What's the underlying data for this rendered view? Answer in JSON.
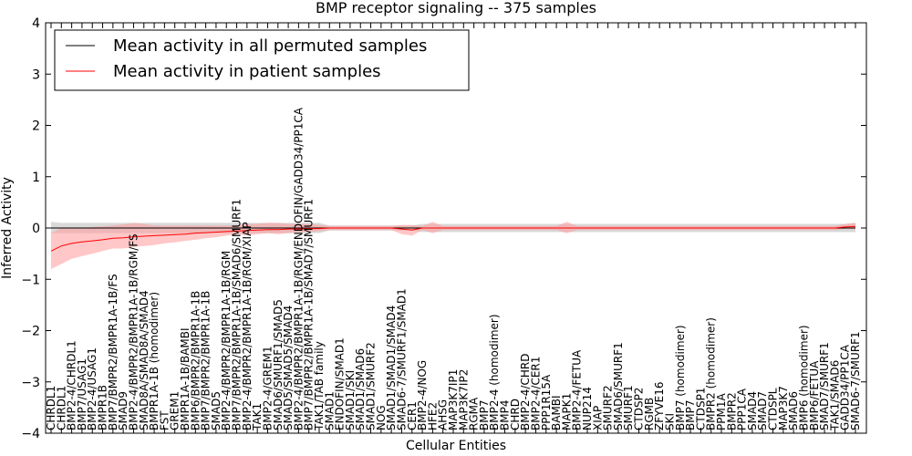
{
  "chart_data": {
    "type": "line",
    "title": "BMP receptor signaling -- 375 samples",
    "xlabel": "Cellular Entities",
    "ylabel": "Inferred Activity",
    "ylim": [
      -4,
      4
    ],
    "yticks": [
      4,
      3,
      2,
      1,
      0,
      -1,
      -2,
      -3,
      -4
    ],
    "ytick_labels": [
      "4",
      "3",
      "2",
      "1",
      "0",
      "−1",
      "−2",
      "−3",
      "−4"
    ],
    "grid": false,
    "legend_position": "top-left",
    "categories": [
      "CHRDL1",
      "CHRDL1",
      "BMP2-4/CHRDL1",
      "BMP7/USAG1",
      "BMP2-4/USAG1",
      "BMPR1B",
      "BMP7/BMPR2/BMPR1A-1B/FS",
      "SMAD9",
      "BMP2-4/BMPR2/BMPR1A-1B/RGM/FS",
      "SMAD8A/SMAD8A/SMAD4",
      "BMPR1A-1B (homodimer)",
      "FST",
      "GREM1",
      "BMPR1A-1B/BAMBI",
      "BMP6/BMPR2/BMPR1A-1B",
      "BMP7/BMPR2/BMPR1A-1B",
      "SMAD5",
      "BMP2-4/BMPR2/BMPR1A-1B/RGM",
      "BMP7/BMPR2/BMPR1A-1B/SMAD6/SMURF1",
      "BMP2-4/BMPR2/BMPR1A-1B/RGM/XIAP",
      "TAK1",
      "BMP2-4/GREM1",
      "SMAD6/SMURF1/SMAD5",
      "SMAD5/SMAD5/SMAD4",
      "BMP2-4/BMPR2/BMPR1A-1B/RGM/ENDOFIN/GADD34/PP1CA",
      "BMP7/BMPR2/BMPR1A-1B/SMAD7/SMURF1",
      "TAK1/TAB family",
      "SMAD1",
      "ENDOFIN/SMAD1",
      "SMAD1/SKI",
      "SMAD1/SMAD6",
      "SMAD1/SMURF2",
      "NOG",
      "SMAD1/SMAD1/SMAD4",
      "SMAD6-7/SMURF1/SMAD1",
      "CER1",
      "BMP2-4/NOG",
      "HFE2",
      "AHSG",
      "MAP3K7IP1",
      "MAP3K7IP2",
      "RGMA",
      "BMP7",
      "BMP2-4 (homodimer)",
      "BMP4",
      "CHRD",
      "BMP2-4/CHRD",
      "BMP2-4/CER1",
      "PPP1R15A",
      "BAMBI",
      "MAPK1",
      "BMP2-4/FETUA",
      "NUP214",
      "XIAP",
      "SMURF2",
      "SMAD6/SMURF1",
      "SMURF1",
      "CTDSP2",
      "RGMB",
      "ZFYVE16",
      "SKI",
      "BMP7 (homodimer)",
      "BMP7",
      "CTDSP1",
      "BMPR2 (homodimer)",
      "PPM1A",
      "BMPR2",
      "PPP1CA",
      "SMAD4",
      "SMAD7",
      "CTDSPL",
      "MAP3K7",
      "SMAD6",
      "BMP6 (homodimer)",
      "BMP6/FETUA",
      "SMAD7/SMURF1",
      "TAK1/SMAD6",
      "GADD34/PP1CA",
      "SMAD6-7/SMURF1"
    ],
    "series": [
      {
        "name": "Mean activity in all permuted samples",
        "color": "#000000",
        "band_color": "#bfbfbf",
        "values": [
          0.0,
          0.0,
          0.0,
          0.0,
          0.0,
          0.0,
          0.0,
          0.0,
          0.0,
          0.0,
          0.0,
          0.0,
          0.0,
          0.0,
          0.0,
          0.0,
          0.0,
          0.0,
          0.0,
          0.0,
          0.0,
          0.0,
          0.0,
          0.0,
          0.0,
          0.0,
          0.0,
          0.0,
          0.0,
          0.0,
          0.0,
          0.0,
          0.0,
          0.0,
          0.0,
          0.0,
          0.0,
          0.0,
          0.0,
          0.0,
          0.0,
          0.0,
          0.0,
          0.0,
          0.0,
          0.0,
          0.0,
          0.0,
          0.0,
          0.0,
          0.0,
          0.0,
          0.0,
          0.0,
          0.0,
          0.0,
          0.0,
          0.0,
          0.0,
          0.0,
          0.0,
          0.0,
          0.0,
          0.0,
          0.0,
          0.0,
          0.0,
          0.0,
          0.0,
          0.0,
          0.0,
          0.0,
          0.0,
          0.0,
          0.0,
          0.0,
          0.0,
          0.0,
          0.0
        ],
        "band_lower": [
          -0.1,
          -0.1,
          -0.1,
          -0.1,
          -0.1,
          -0.1,
          -0.1,
          -0.1,
          -0.1,
          -0.1,
          -0.1,
          -0.1,
          -0.1,
          -0.1,
          -0.1,
          -0.1,
          -0.1,
          -0.1,
          -0.1,
          -0.1,
          -0.1,
          -0.1,
          -0.1,
          -0.1,
          -0.1,
          -0.1,
          -0.1,
          -0.05,
          -0.05,
          -0.05,
          -0.05,
          -0.05,
          -0.05,
          -0.05,
          -0.05,
          -0.05,
          -0.08,
          -0.08,
          -0.08,
          -0.08,
          -0.08,
          -0.08,
          -0.08,
          -0.08,
          -0.08,
          -0.08,
          -0.08,
          -0.08,
          -0.08,
          -0.08,
          -0.08,
          -0.08,
          -0.08,
          -0.08,
          -0.08,
          -0.08,
          -0.08,
          -0.08,
          -0.08,
          -0.08,
          -0.08,
          -0.08,
          -0.08,
          -0.08,
          -0.08,
          -0.08,
          -0.08,
          -0.08,
          -0.08,
          -0.08,
          -0.08,
          -0.08,
          -0.08,
          -0.08,
          -0.08,
          -0.08,
          -0.08,
          -0.08,
          -0.08
        ],
        "band_upper": [
          0.12,
          0.1,
          0.1,
          0.1,
          0.1,
          0.1,
          0.1,
          0.1,
          0.1,
          0.1,
          0.1,
          0.1,
          0.1,
          0.1,
          0.1,
          0.1,
          0.1,
          0.1,
          0.1,
          0.1,
          0.1,
          0.1,
          0.1,
          0.1,
          0.1,
          0.1,
          0.1,
          0.05,
          0.05,
          0.05,
          0.05,
          0.05,
          0.05,
          0.05,
          0.05,
          0.05,
          0.08,
          0.08,
          0.08,
          0.08,
          0.08,
          0.08,
          0.08,
          0.08,
          0.08,
          0.08,
          0.08,
          0.08,
          0.08,
          0.08,
          0.08,
          0.08,
          0.08,
          0.08,
          0.08,
          0.08,
          0.08,
          0.08,
          0.08,
          0.08,
          0.08,
          0.08,
          0.08,
          0.08,
          0.08,
          0.08,
          0.08,
          0.08,
          0.08,
          0.08,
          0.08,
          0.08,
          0.08,
          0.08,
          0.08,
          0.08,
          0.08,
          0.08,
          0.1
        ]
      },
      {
        "name": "Mean activity in patient samples",
        "color": "#ff0000",
        "band_color": "#ff9999",
        "values": [
          -0.45,
          -0.35,
          -0.3,
          -0.27,
          -0.25,
          -0.23,
          -0.2,
          -0.19,
          -0.17,
          -0.16,
          -0.15,
          -0.14,
          -0.13,
          -0.12,
          -0.1,
          -0.09,
          -0.08,
          -0.07,
          -0.06,
          -0.05,
          -0.04,
          -0.03,
          -0.03,
          -0.02,
          -0.02,
          -0.01,
          -0.01,
          0.0,
          0.0,
          0.0,
          0.0,
          0.0,
          0.0,
          0.0,
          -0.02,
          -0.04,
          0.0,
          0.0,
          0.0,
          0.0,
          0.0,
          0.0,
          0.0,
          0.0,
          0.0,
          0.0,
          0.0,
          0.0,
          0.0,
          0.0,
          0.0,
          0.0,
          0.0,
          0.0,
          0.0,
          0.0,
          0.0,
          0.0,
          0.0,
          0.0,
          0.0,
          0.0,
          0.0,
          0.0,
          0.0,
          0.0,
          0.0,
          0.0,
          0.0,
          0.0,
          0.0,
          0.0,
          0.0,
          0.0,
          0.0,
          0.0,
          0.0,
          0.02,
          0.03
        ],
        "band_lower": [
          -0.8,
          -0.7,
          -0.6,
          -0.55,
          -0.5,
          -0.45,
          -0.4,
          -0.4,
          -0.37,
          -0.35,
          -0.33,
          -0.3,
          -0.28,
          -0.25,
          -0.23,
          -0.2,
          -0.18,
          -0.15,
          -0.12,
          -0.15,
          -0.12,
          -0.1,
          -0.12,
          -0.1,
          -0.08,
          -0.08,
          -0.06,
          -0.04,
          -0.04,
          -0.04,
          -0.04,
          -0.04,
          -0.04,
          -0.04,
          -0.12,
          -0.15,
          -0.04,
          -0.1,
          -0.04,
          -0.04,
          -0.04,
          -0.04,
          -0.04,
          -0.04,
          -0.04,
          -0.04,
          -0.04,
          -0.04,
          -0.04,
          -0.04,
          -0.1,
          -0.04,
          -0.04,
          -0.04,
          -0.04,
          -0.04,
          -0.04,
          -0.04,
          -0.04,
          -0.04,
          -0.04,
          -0.04,
          -0.04,
          -0.04,
          -0.04,
          -0.04,
          -0.04,
          -0.04,
          -0.04,
          -0.04,
          -0.04,
          -0.04,
          -0.04,
          -0.04,
          -0.04,
          -0.04,
          -0.04,
          -0.02,
          -0.02
        ],
        "band_upper": [
          -0.1,
          0.0,
          0.0,
          0.0,
          0.02,
          0.03,
          0.05,
          0.07,
          0.1,
          0.08,
          0.05,
          0.05,
          0.05,
          0.05,
          0.05,
          0.05,
          0.05,
          0.05,
          0.05,
          0.08,
          0.08,
          0.1,
          0.1,
          0.08,
          0.08,
          0.08,
          0.06,
          0.04,
          0.04,
          0.04,
          0.04,
          0.04,
          0.04,
          0.04,
          0.06,
          0.06,
          0.04,
          0.12,
          0.04,
          0.04,
          0.04,
          0.04,
          0.04,
          0.04,
          0.04,
          0.04,
          0.04,
          0.04,
          0.04,
          0.04,
          0.12,
          0.04,
          0.04,
          0.04,
          0.04,
          0.04,
          0.04,
          0.04,
          0.04,
          0.04,
          0.04,
          0.04,
          0.04,
          0.04,
          0.04,
          0.04,
          0.04,
          0.04,
          0.04,
          0.04,
          0.04,
          0.04,
          0.04,
          0.04,
          0.04,
          0.04,
          0.04,
          0.08,
          0.1
        ]
      }
    ]
  }
}
